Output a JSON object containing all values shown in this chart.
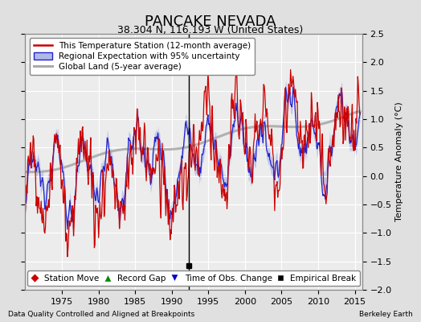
{
  "title": "PANCAKE NEVADA",
  "subtitle": "38.304 N, 116.193 W (United States)",
  "ylabel": "Temperature Anomaly (°C)",
  "xlabel_left": "Data Quality Controlled and Aligned at Breakpoints",
  "xlabel_right": "Berkeley Earth",
  "ylim": [
    -2.0,
    2.5
  ],
  "yticks": [
    -2,
    -1.5,
    -1,
    -0.5,
    0,
    0.5,
    1,
    1.5,
    2,
    2.5
  ],
  "xlim": [
    1970,
    2016
  ],
  "xticks": [
    1975,
    1980,
    1985,
    1990,
    1995,
    2000,
    2005,
    2010,
    2015
  ],
  "bg_color": "#e0e0e0",
  "plot_bg_color": "#ececec",
  "grid_color": "#ffffff",
  "station_color": "#cc0000",
  "regional_color": "#2222cc",
  "regional_fill_color": "#b0b8e8",
  "global_color": "#aaaaaa",
  "legend_labels": [
    "This Temperature Station (12-month average)",
    "Regional Expectation with 95% uncertainty",
    "Global Land (5-year average)"
  ],
  "marker_labels": [
    "Station Move",
    "Record Gap",
    "Time of Obs. Change",
    "Empirical Break"
  ],
  "marker_colors": [
    "#cc0000",
    "#008800",
    "#0000cc",
    "#000000"
  ],
  "marker_styles": [
    "D",
    "^",
    "v",
    "s"
  ],
  "empirical_break_x": 1992.3,
  "empirical_break_y": -1.57,
  "vline_x": 1992.3,
  "title_fontsize": 13,
  "subtitle_fontsize": 9,
  "tick_fontsize": 8,
  "label_fontsize": 8,
  "legend_fontsize": 7.5,
  "marker_legend_fontsize": 7.5
}
